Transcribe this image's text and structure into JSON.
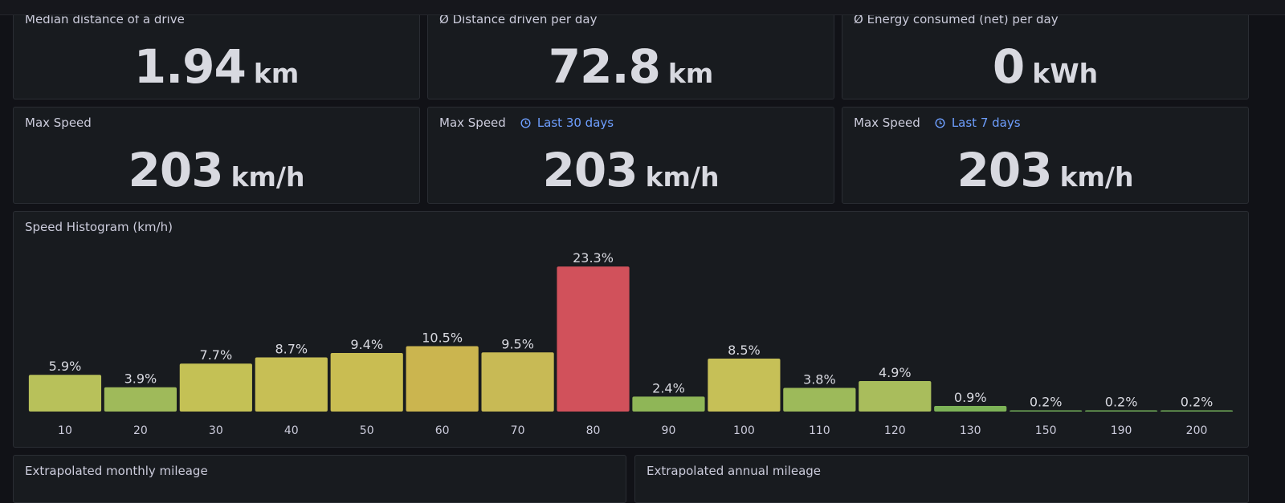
{
  "panels": [
    {
      "title": "Median distance of a drive",
      "value": 1.94,
      "unit": "km"
    },
    {
      "title": "Ø Distance driven per day",
      "value": 72.8,
      "unit": "km"
    },
    {
      "title": "Ø Energy consumed (net) per day",
      "value": 0,
      "unit": "kWh"
    },
    {
      "title": "Max Speed",
      "value": 203,
      "unit": "km/h"
    },
    {
      "title": "Max Speed",
      "time_range": "Last 30 days",
      "value": 203,
      "unit": "km/h"
    },
    {
      "title": "Max Speed",
      "time_range": "Last 7 days",
      "value": 203,
      "unit": "km/h"
    }
  ],
  "chart_data": {
    "type": "bar",
    "title": "Speed Histogram (km/h)",
    "categories": [
      "10",
      "20",
      "30",
      "40",
      "50",
      "60",
      "70",
      "80",
      "90",
      "100",
      "110",
      "120",
      "130",
      "150",
      "190",
      "200"
    ],
    "values": [
      5.9,
      3.9,
      7.7,
      8.7,
      9.4,
      10.5,
      9.5,
      23.3,
      2.4,
      8.5,
      3.8,
      4.9,
      0.9,
      0.2,
      0.2,
      0.2
    ],
    "value_labels": [
      "5.9%",
      "3.9%",
      "7.7%",
      "8.7%",
      "9.4%",
      "10.5%",
      "9.5%",
      "23.3%",
      "2.4%",
      "8.5%",
      "3.8%",
      "4.9%",
      "0.9%",
      "0.2%",
      "0.2%",
      "0.2%"
    ],
    "colors": [
      "#b8c15a",
      "#9fba5a",
      "#c4c155",
      "#c7bf55",
      "#c9bd52",
      "#cbb54f",
      "#c8ba55",
      "#d1515b",
      "#8fb657",
      "#c6c057",
      "#9dba5a",
      "#a9bd5c",
      "#7db357",
      "#73b05a",
      "#73b05a",
      "#73b05a"
    ],
    "ylim": [
      0,
      25
    ]
  },
  "bottom_panels": [
    {
      "title": "Extrapolated monthly mileage"
    },
    {
      "title": "Extrapolated annual mileage"
    }
  ]
}
